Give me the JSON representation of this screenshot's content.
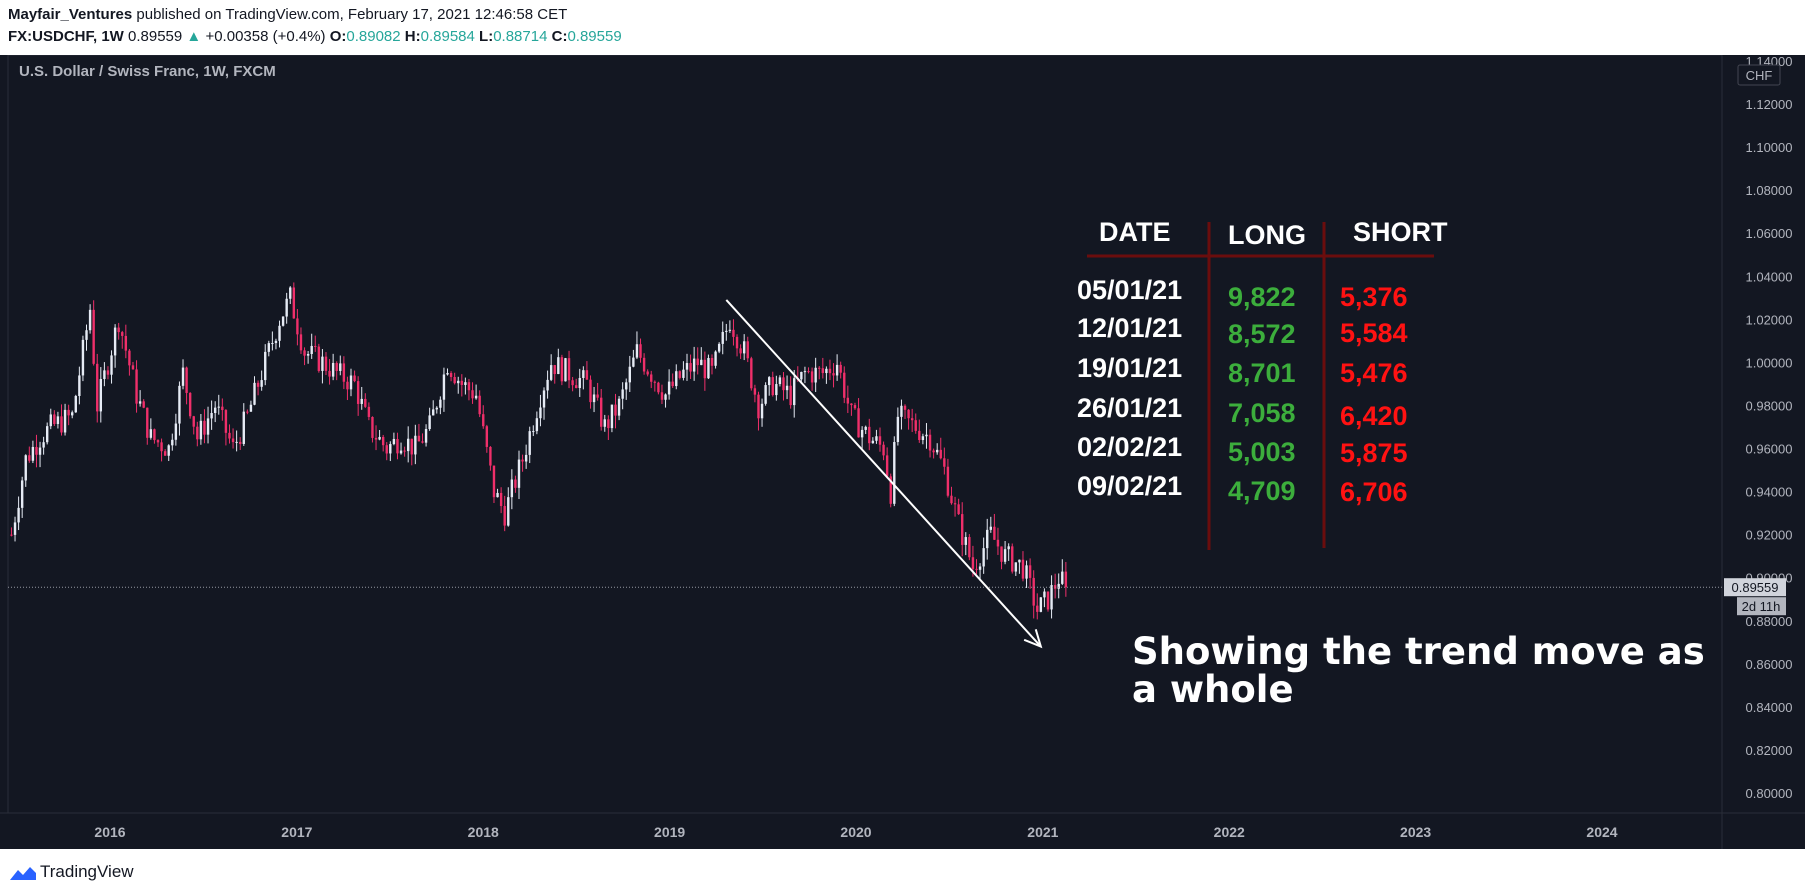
{
  "header": {
    "author": "Mayfair_Ventures",
    "published": "published on TradingView.com, February 17, 2021 12:46:58 CET",
    "symbol": "FX:USDCHF, 1W",
    "last": "0.89559",
    "change_arrow": "▲",
    "change": "+0.00358 (+0.4%)",
    "o_label": "O:",
    "o_value": "0.89082",
    "h_label": "H:",
    "h_value": "0.89584",
    "l_label": "L:",
    "l_value": "0.88714",
    "c_label": "C:",
    "c_value": "0.89559"
  },
  "footer": {
    "brand": "TradingView"
  },
  "colors": {
    "background": "#131722",
    "up_candle": "#e6ebf5",
    "down_candle": "#ef2f6a",
    "long_green": "#3cae3c",
    "short_red": "#ff1212",
    "divider": "#6b0d0d",
    "text": "#ffffff",
    "axis_text": "#b2b5be"
  },
  "chart_data": {
    "type": "candlestick",
    "title": "U.S. Dollar / Swiss Franc, 1W, FXCM",
    "currency_label": "CHF",
    "x_ticks": [
      "2016",
      "2017",
      "2018",
      "2019",
      "2020",
      "2021",
      "2022",
      "2023",
      "2024"
    ],
    "y_ticks": [
      "0.80000",
      "0.82000",
      "0.84000",
      "0.86000",
      "0.88000",
      "0.90000",
      "0.92000",
      "0.94000",
      "0.96000",
      "0.98000",
      "1.00000",
      "1.02000",
      "1.04000",
      "1.06000",
      "1.08000",
      "1.10000",
      "1.12000",
      "1.14000"
    ],
    "ylim": [
      0.795,
      1.14
    ],
    "x_range": [
      "2015-06",
      "2024-10"
    ],
    "last_price": {
      "value": 0.89559,
      "label": "0.89559",
      "countdown": "2d 11h"
    },
    "price_path": [
      [
        "2015-06-22",
        0.92
      ],
      [
        "2015-07-20",
        0.955
      ],
      [
        "2015-08-17",
        0.965
      ],
      [
        "2015-09-07",
        0.97
      ],
      [
        "2015-10-19",
        0.975
      ],
      [
        "2015-11-23",
        1.025
      ],
      [
        "2015-12-07",
        0.98
      ],
      [
        "2016-01-18",
        1.02
      ],
      [
        "2016-02-22",
        0.985
      ],
      [
        "2016-03-21",
        0.965
      ],
      [
        "2016-04-25",
        0.96
      ],
      [
        "2016-05-23",
        0.995
      ],
      [
        "2016-06-20",
        0.965
      ],
      [
        "2016-07-25",
        0.98
      ],
      [
        "2016-08-29",
        0.96
      ],
      [
        "2016-09-26",
        0.975
      ],
      [
        "2016-10-24",
        0.995
      ],
      [
        "2016-11-28",
        1.02
      ],
      [
        "2016-12-19",
        1.03
      ],
      [
        "2017-01-16",
        1.005
      ],
      [
        "2017-02-20",
        1.0
      ],
      [
        "2017-03-20",
        0.995
      ],
      [
        "2017-04-24",
        0.99
      ],
      [
        "2017-05-22",
        0.97
      ],
      [
        "2017-06-26",
        0.96
      ],
      [
        "2017-07-24",
        0.965
      ],
      [
        "2017-08-21",
        0.96
      ],
      [
        "2017-09-18",
        0.97
      ],
      [
        "2017-10-23",
        1.0
      ],
      [
        "2017-11-20",
        0.99
      ],
      [
        "2017-12-18",
        0.985
      ],
      [
        "2018-01-22",
        0.94
      ],
      [
        "2018-02-12",
        0.93
      ],
      [
        "2018-03-19",
        0.955
      ],
      [
        "2018-04-23",
        0.985
      ],
      [
        "2018-05-14",
        1.0
      ],
      [
        "2018-06-18",
        0.995
      ],
      [
        "2018-07-23",
        0.99
      ],
      [
        "2018-08-27",
        0.97
      ],
      [
        "2018-09-24",
        0.98
      ],
      [
        "2018-10-29",
        1.005
      ],
      [
        "2018-11-26",
        0.995
      ],
      [
        "2018-12-24",
        0.985
      ],
      [
        "2019-01-28",
        0.995
      ],
      [
        "2019-02-25",
        1.0
      ],
      [
        "2019-03-25",
        0.995
      ],
      [
        "2019-04-29",
        1.02
      ],
      [
        "2019-05-27",
        1.005
      ],
      [
        "2019-06-24",
        0.98
      ],
      [
        "2019-07-22",
        0.99
      ],
      [
        "2019-08-26",
        0.985
      ],
      [
        "2019-09-23",
        0.995
      ],
      [
        "2019-10-28",
        0.995
      ],
      [
        "2019-11-25",
        1.0
      ],
      [
        "2019-12-23",
        0.975
      ],
      [
        "2020-01-27",
        0.965
      ],
      [
        "2020-02-24",
        0.96
      ],
      [
        "2020-03-09",
        0.94
      ],
      [
        "2020-03-23",
        0.975
      ],
      [
        "2020-04-27",
        0.97
      ],
      [
        "2020-05-25",
        0.965
      ],
      [
        "2020-06-22",
        0.95
      ],
      [
        "2020-07-20",
        0.925
      ],
      [
        "2020-08-17",
        0.905
      ],
      [
        "2020-09-21",
        0.92
      ],
      [
        "2020-10-19",
        0.91
      ],
      [
        "2020-11-23",
        0.905
      ],
      [
        "2020-12-21",
        0.885
      ],
      [
        "2021-01-11",
        0.89
      ],
      [
        "2021-02-01",
        0.9
      ],
      [
        "2021-02-15",
        0.8956
      ]
    ],
    "annotations": {
      "trend_arrow": {
        "start": [
          "2019-04-22",
          1.029
        ],
        "end": [
          "2020-12-28",
          0.868
        ]
      },
      "note": [
        "Showing the trend move as",
        "a whole"
      ]
    },
    "table": {
      "headers": [
        "DATE",
        "LONG",
        "SHORT"
      ],
      "rows": [
        [
          "05/01/21",
          "9,822",
          "5,376"
        ],
        [
          "12/01/21",
          "8,572",
          "5,584"
        ],
        [
          "19/01/21",
          "8,701",
          "5,476"
        ],
        [
          "26/01/21",
          "7,058",
          "6,420"
        ],
        [
          "02/02/21",
          "5,003",
          "5,875"
        ],
        [
          "09/02/21",
          "4,709",
          "6,706"
        ]
      ]
    }
  }
}
